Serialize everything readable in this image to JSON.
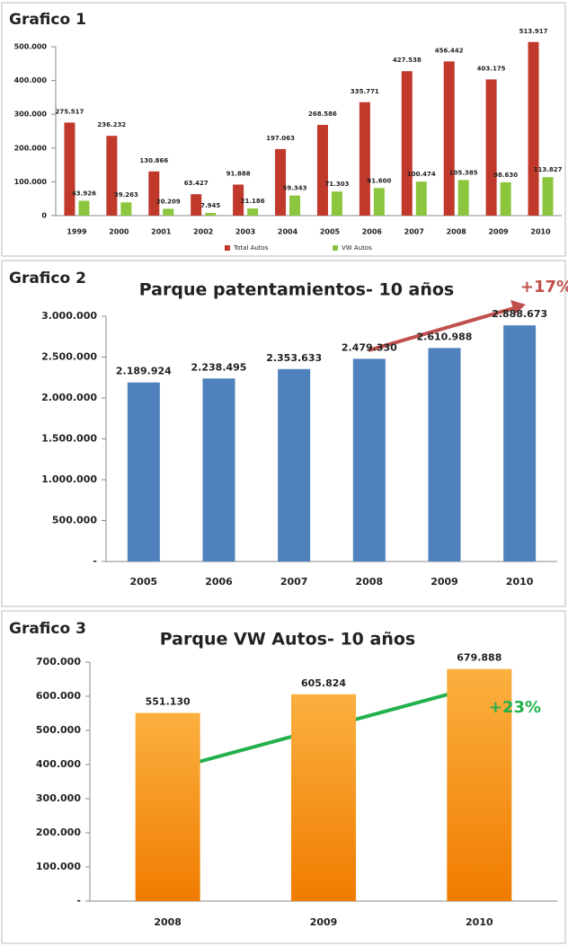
{
  "chart_data": [
    {
      "type": "bar",
      "panel_label": "Grafico 1",
      "categories": [
        "1999",
        "2000",
        "2001",
        "2002",
        "2003",
        "2004",
        "2005",
        "2006",
        "2007",
        "2008",
        "2009",
        "2010"
      ],
      "series": [
        {
          "name": "Total Autos",
          "color": "#c0392b",
          "values": [
            275517,
            236232,
            130866,
            63427,
            91888,
            197063,
            268586,
            335771,
            427538,
            456442,
            403175,
            513917
          ],
          "value_labels": [
            "275.517",
            "236.232",
            "130.866",
            "63.427",
            "91.888",
            "197.063",
            "268.586",
            "335.771",
            "427.538",
            "456.442",
            "403.175",
            "513.917"
          ]
        },
        {
          "name": "VW Autos",
          "color": "#8cc63f",
          "values": [
            43926,
            39263,
            20209,
            7945,
            21186,
            59343,
            71303,
            81600,
            100474,
            105385,
            98630,
            113827
          ],
          "value_labels": [
            "43.926",
            "39.263",
            "20.209",
            "7.945",
            "21.186",
            "59.343",
            "71.303",
            "81.600",
            "100.474",
            "105.385",
            "98.630",
            "113.827"
          ]
        }
      ],
      "ylim": [
        0,
        500000
      ],
      "yticks": [
        0,
        {
          "value": 100000,
          "label": "100.000"
        },
        {
          "value": 200000,
          "label": "200.000"
        },
        {
          "value": 300000,
          "label": "300.000"
        },
        {
          "value": 400000,
          "label": "400.000"
        },
        {
          "value": 500000,
          "label": "500.000"
        }
      ],
      "legend": "bottom"
    },
    {
      "type": "bar",
      "panel_label": "Grafico 2",
      "title": "Parque patentamientos- 10 años",
      "categories": [
        "2005",
        "2006",
        "2007",
        "2008",
        "2009",
        "2010"
      ],
      "series": [
        {
          "color": "#4f81bd",
          "values": [
            2189924,
            2238495,
            2353633,
            2479330,
            2610988,
            2888673
          ],
          "value_labels": [
            "2.189.924",
            "2.238.495",
            "2.353.633",
            "2.479.330",
            "2.610.988",
            "2.888.673"
          ]
        }
      ],
      "ylim": [
        0,
        3000000
      ],
      "yticks": [
        {
          "value": 0,
          "label": "-"
        },
        {
          "value": 500000,
          "label": "500.000"
        },
        {
          "value": 1000000,
          "label": "1.000.000"
        },
        {
          "value": 1500000,
          "label": "1.500.000"
        },
        {
          "value": 2000000,
          "label": "2.000.000"
        },
        {
          "value": 2500000,
          "label": "2.500.000"
        },
        {
          "value": 3000000,
          "label": "3.000.000"
        }
      ],
      "annotations": [
        {
          "text": "+17%",
          "color": "#c0504d"
        }
      ]
    },
    {
      "type": "bar",
      "panel_label": "Grafico 3",
      "title": "Parque VW Autos- 10 años",
      "categories": [
        "2008",
        "2009",
        "2010"
      ],
      "series": [
        {
          "color": "#f7941d",
          "values": [
            551130,
            605824,
            679888
          ],
          "value_labels": [
            "551.130",
            "605.824",
            "679.888"
          ]
        }
      ],
      "ylim": [
        0,
        700000
      ],
      "yticks": [
        {
          "value": 0,
          "label": "-"
        },
        {
          "value": 100000,
          "label": "100.000"
        },
        {
          "value": 200000,
          "label": "200.000"
        },
        {
          "value": 300000,
          "label": "300.000"
        },
        {
          "value": 400000,
          "label": "400.000"
        },
        {
          "value": 500000,
          "label": "500.000"
        },
        {
          "value": 600000,
          "label": "600.000"
        },
        {
          "value": 700000,
          "label": "700.000"
        }
      ],
      "annotations": [
        {
          "text": "+23%",
          "color": "#22b14c"
        }
      ]
    }
  ]
}
